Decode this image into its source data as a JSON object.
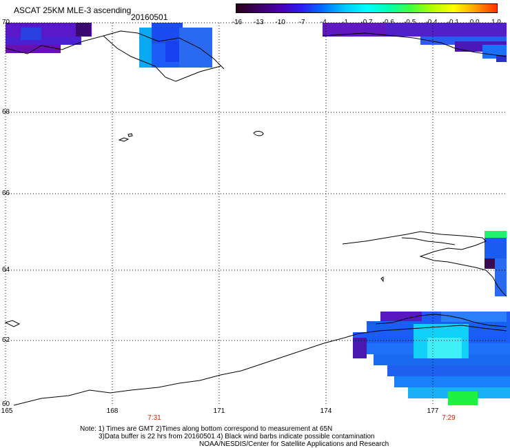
{
  "header": {
    "title": "ASCAT 25KM MLE-3 ascending",
    "date": "20160501"
  },
  "colorbar": {
    "labels": [
      "-16",
      "-13",
      "-10",
      "-7",
      "-4",
      "-1",
      "-0.7",
      "-0.6",
      "-0.5",
      "-0.4",
      "-0.1",
      "0.0",
      "1.0"
    ],
    "colors": [
      "#2a0018",
      "#3a0060",
      "#4a00b0",
      "#2a1cf0",
      "#0070ff",
      "#00c8ff",
      "#00ffff",
      "#00ffb0",
      "#40ff40",
      "#b0ff00",
      "#ffff00",
      "#ffa000",
      "#ff3000"
    ]
  },
  "map": {
    "latitude_labels": [
      "70",
      "68",
      "66",
      "64",
      "62",
      "60"
    ],
    "longitude_labels": [
      "165",
      "168",
      "171",
      "174",
      "177"
    ],
    "pass_times": [
      "7:31",
      "7:29"
    ]
  },
  "footer": {
    "line1": "Note: 1) Times are GMT 2)Times along bottom correspond to measurement at 65N",
    "line2": "3)Data buffer is 22 hrs from 20160501 4) Black wind barbs indicate possible contamination",
    "line3": "NOAA/NESDIS/Center for Satellite Applications and Research"
  }
}
